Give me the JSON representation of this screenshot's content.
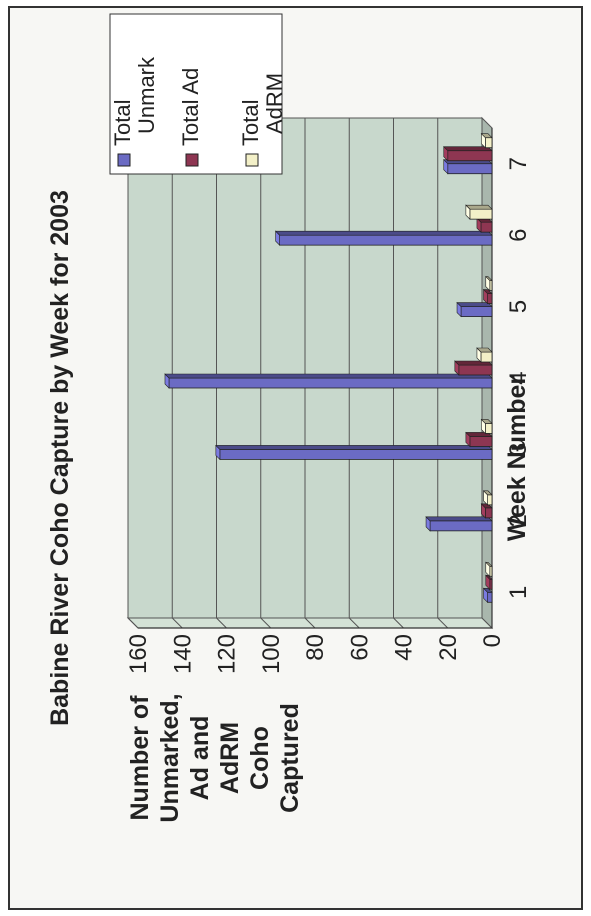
{
  "colors": {
    "unmark": "#6b6bc4",
    "ad": "#8e3652",
    "adrm": "#f3f0c8",
    "plot_bg": "#c8d8cc",
    "wall": "#d4e2d6",
    "floor": "#a9b7ad"
  },
  "chart_data": {
    "type": "bar",
    "title": "Babine River Coho Capture by Week for 2003",
    "xlabel": "Week Number",
    "ylabel": "Number of Unmarked, Ad and AdRM Coho Captured",
    "ylabel_lines": [
      "Number of",
      "Unmarked,",
      "Ad and",
      "AdRM",
      "Coho",
      "Captured"
    ],
    "categories": [
      "1",
      "2",
      "3",
      "4",
      "5",
      "6",
      "7"
    ],
    "series": [
      {
        "name": "Total Unmark",
        "name_lines": [
          "Total",
          "Unmark"
        ],
        "values": [
          2,
          28,
          123,
          146,
          14,
          96,
          20
        ]
      },
      {
        "name": "Total Ad",
        "name_lines": [
          "Total Ad"
        ],
        "values": [
          1,
          3,
          10,
          15,
          2,
          5,
          20
        ]
      },
      {
        "name": "Total AdRM",
        "name_lines": [
          "Total",
          "AdRM"
        ],
        "values": [
          1,
          2,
          3,
          5,
          1,
          10,
          3
        ]
      }
    ],
    "ylim": [
      0,
      160
    ],
    "yticks": [
      0,
      20,
      40,
      60,
      80,
      100,
      120,
      140,
      160
    ],
    "grid": true,
    "legend_position": "right"
  }
}
